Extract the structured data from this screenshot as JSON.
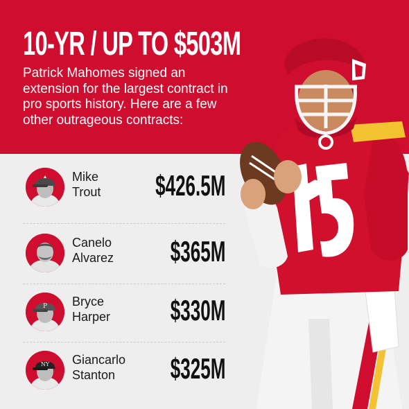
{
  "headline": "10-YR / UP TO $503M",
  "subtitle": "Patrick Mahomes signed an extension for the largest contract in pro sports history. Here are a few other outrageous contracts:",
  "colors": {
    "brand_red": "#cf0d2f",
    "background": "#efeeee",
    "text_dark": "#111111",
    "text_light": "#ffffff"
  },
  "contracts": [
    {
      "first": "Mike",
      "last": "Trout",
      "amount": "$426.5M",
      "icon": "angels-cap-player-avatar"
    },
    {
      "first": "Canelo",
      "last": "Alvarez",
      "amount": "$365M",
      "icon": "boxer-player-avatar"
    },
    {
      "first": "Bryce",
      "last": "Harper",
      "amount": "$330M",
      "icon": "phillies-cap-player-avatar"
    },
    {
      "first": "Giancarlo",
      "last": "Stanton",
      "amount": "$325M",
      "icon": "yankees-cap-player-avatar"
    }
  ],
  "hero_image": "quarterback-holding-football-photo"
}
